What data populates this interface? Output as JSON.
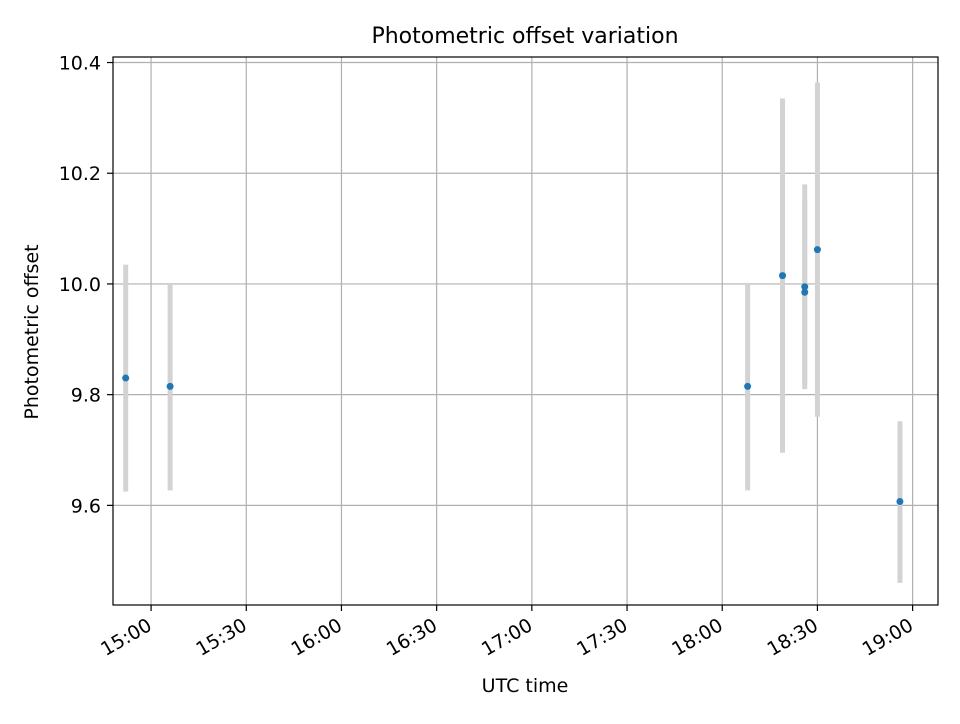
{
  "chart_data": {
    "type": "scatter",
    "title": "Photometric offset variation",
    "xlabel": "UTC time",
    "ylabel": "Photometric offset",
    "x_tick_labels": [
      "15:00",
      "15:30",
      "16:00",
      "16:30",
      "17:00",
      "17:30",
      "18:00",
      "18:30",
      "19:00"
    ],
    "y_tick_labels": [
      "9.6",
      "9.8",
      "10.0",
      "10.2",
      "10.4"
    ],
    "xlim": [
      "14:48",
      "19:08"
    ],
    "ylim": [
      9.42,
      10.41
    ],
    "grid": true,
    "legend": "none",
    "colors": {
      "point": "#1f77b4",
      "errorbar": "#d3d3d3",
      "grid": "#b0b0b0",
      "axes": "#000000"
    },
    "points": [
      {
        "x": "14:52",
        "y": 9.83,
        "yerr": [
          9.625,
          10.035
        ]
      },
      {
        "x": "15:06",
        "y": 9.815,
        "yerr": [
          9.627,
          10.002
        ]
      },
      {
        "x": "18:08",
        "y": 9.815,
        "yerr": [
          9.627,
          10.002
        ]
      },
      {
        "x": "18:19",
        "y": 10.015,
        "yerr": [
          9.695,
          10.335
        ]
      },
      {
        "x": "18:26",
        "y": 9.985,
        "yerr": [
          9.82,
          10.15
        ]
      },
      {
        "x": "18:26",
        "y": 9.995,
        "yerr": [
          9.81,
          10.18
        ]
      },
      {
        "x": "18:30",
        "y": 10.062,
        "yerr": [
          9.76,
          10.364
        ]
      },
      {
        "x": "18:56",
        "y": 9.607,
        "yerr": [
          9.46,
          9.752
        ]
      }
    ]
  }
}
